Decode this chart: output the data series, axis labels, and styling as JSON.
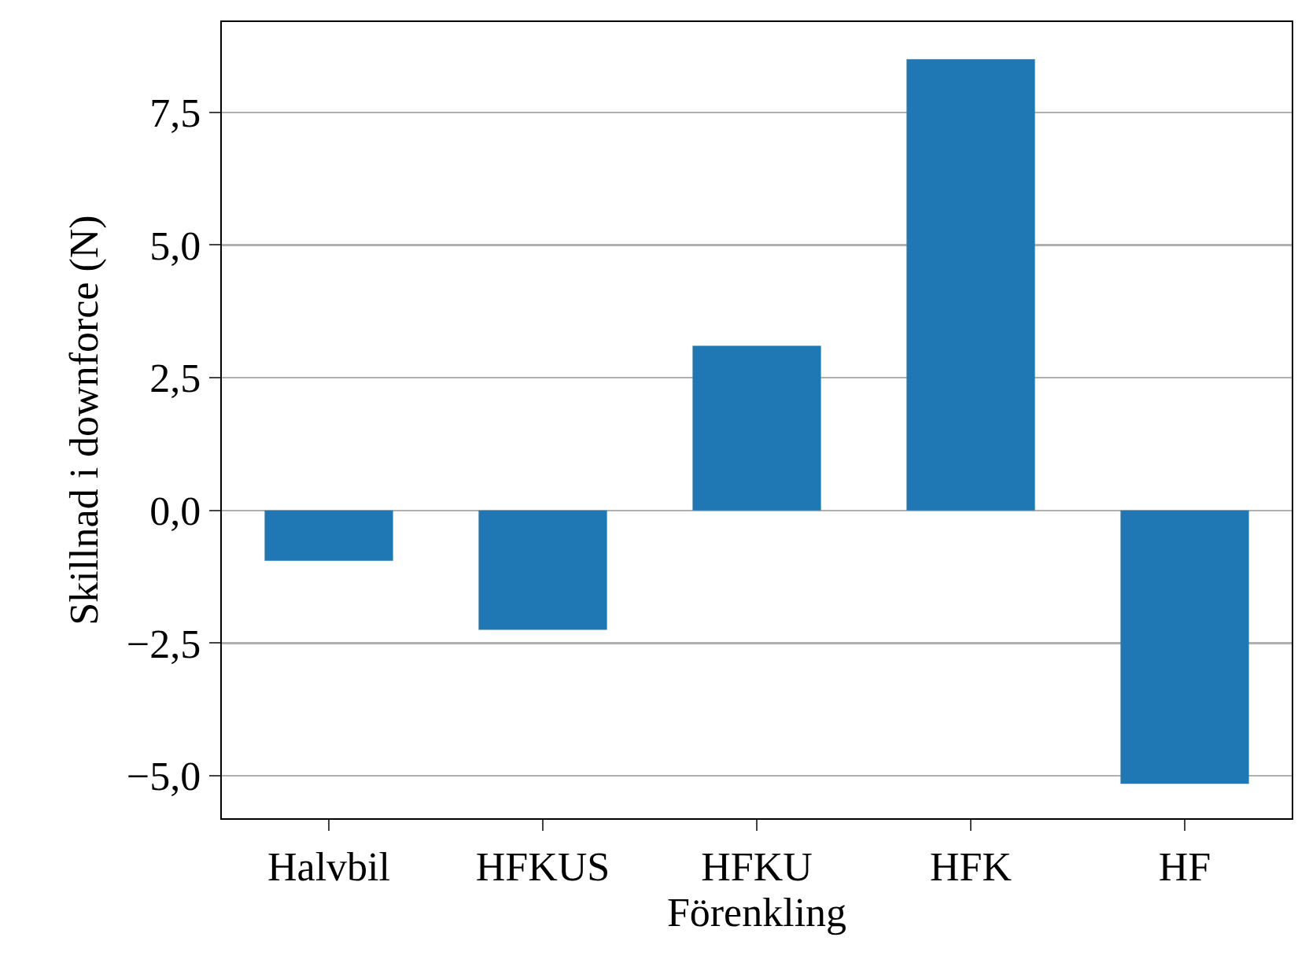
{
  "chart_data": {
    "type": "bar",
    "xlabel": "Förenkling",
    "ylabel": "Skillnad i downforce (N)",
    "categories": [
      "Halvbil",
      "HFKUS",
      "HFKU",
      "HFK",
      "HF"
    ],
    "values": [
      -0.95,
      -2.25,
      3.1,
      8.5,
      -5.15
    ],
    "color": "#1f77b4",
    "ylim": [
      -5.8,
      9.2
    ],
    "yticks": [
      {
        "value": -5,
        "label": "−5,0"
      },
      {
        "value": -2.5,
        "label": "−2,5"
      },
      {
        "value": 0,
        "label": "0,0"
      },
      {
        "value": 2.5,
        "label": "2,5"
      },
      {
        "value": 5,
        "label": "5,0"
      },
      {
        "value": 7.5,
        "label": "7,5"
      }
    ],
    "grid": "y"
  }
}
